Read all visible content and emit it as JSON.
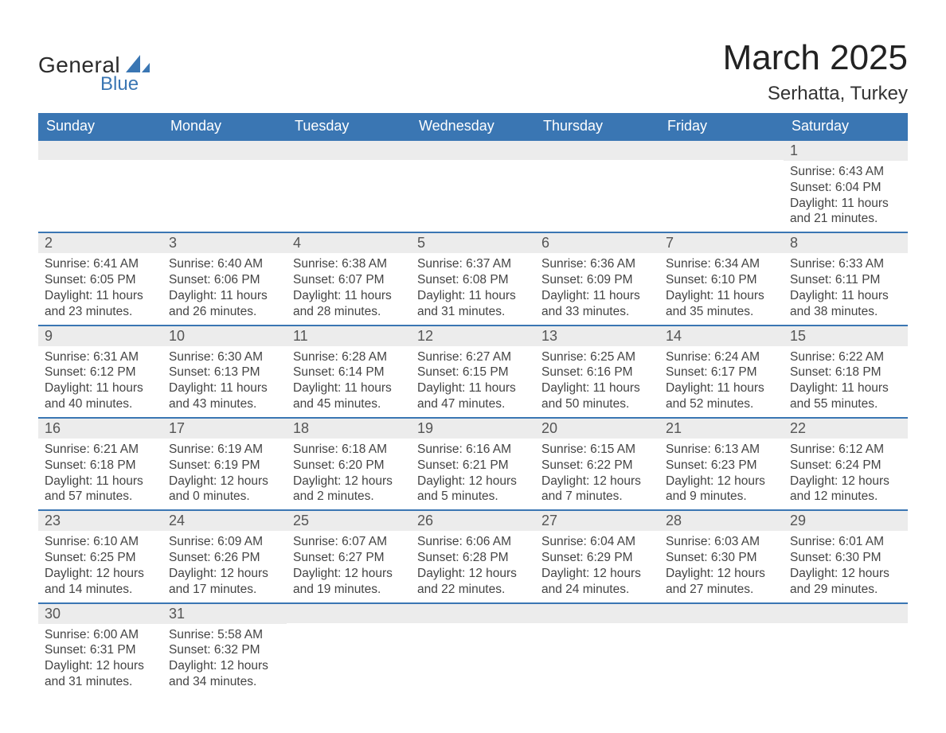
{
  "brand": {
    "top": "General",
    "bottom": "Blue"
  },
  "title": "March 2025",
  "location": "Serhatta, Turkey",
  "colors": {
    "header_bg": "#3a76b3",
    "header_text": "#ffffff",
    "daynum_bg": "#ececec",
    "row_border": "#3a76b3",
    "body_text": "#444444",
    "page_bg": "#ffffff",
    "brand_blue": "#3a76b3"
  },
  "fonts": {
    "title_pt": 44,
    "location_pt": 24,
    "header_pt": 18,
    "body_pt": 15.5
  },
  "day_headers": [
    "Sunday",
    "Monday",
    "Tuesday",
    "Wednesday",
    "Thursday",
    "Friday",
    "Saturday"
  ],
  "calendar": {
    "type": "table",
    "columns": 7,
    "weeks": [
      [
        null,
        null,
        null,
        null,
        null,
        null,
        {
          "n": "1",
          "sunrise": "6:43 AM",
          "sunset": "6:04 PM",
          "daylight": "11 hours and 21 minutes."
        }
      ],
      [
        {
          "n": "2",
          "sunrise": "6:41 AM",
          "sunset": "6:05 PM",
          "daylight": "11 hours and 23 minutes."
        },
        {
          "n": "3",
          "sunrise": "6:40 AM",
          "sunset": "6:06 PM",
          "daylight": "11 hours and 26 minutes."
        },
        {
          "n": "4",
          "sunrise": "6:38 AM",
          "sunset": "6:07 PM",
          "daylight": "11 hours and 28 minutes."
        },
        {
          "n": "5",
          "sunrise": "6:37 AM",
          "sunset": "6:08 PM",
          "daylight": "11 hours and 31 minutes."
        },
        {
          "n": "6",
          "sunrise": "6:36 AM",
          "sunset": "6:09 PM",
          "daylight": "11 hours and 33 minutes."
        },
        {
          "n": "7",
          "sunrise": "6:34 AM",
          "sunset": "6:10 PM",
          "daylight": "11 hours and 35 minutes."
        },
        {
          "n": "8",
          "sunrise": "6:33 AM",
          "sunset": "6:11 PM",
          "daylight": "11 hours and 38 minutes."
        }
      ],
      [
        {
          "n": "9",
          "sunrise": "6:31 AM",
          "sunset": "6:12 PM",
          "daylight": "11 hours and 40 minutes."
        },
        {
          "n": "10",
          "sunrise": "6:30 AM",
          "sunset": "6:13 PM",
          "daylight": "11 hours and 43 minutes."
        },
        {
          "n": "11",
          "sunrise": "6:28 AM",
          "sunset": "6:14 PM",
          "daylight": "11 hours and 45 minutes."
        },
        {
          "n": "12",
          "sunrise": "6:27 AM",
          "sunset": "6:15 PM",
          "daylight": "11 hours and 47 minutes."
        },
        {
          "n": "13",
          "sunrise": "6:25 AM",
          "sunset": "6:16 PM",
          "daylight": "11 hours and 50 minutes."
        },
        {
          "n": "14",
          "sunrise": "6:24 AM",
          "sunset": "6:17 PM",
          "daylight": "11 hours and 52 minutes."
        },
        {
          "n": "15",
          "sunrise": "6:22 AM",
          "sunset": "6:18 PM",
          "daylight": "11 hours and 55 minutes."
        }
      ],
      [
        {
          "n": "16",
          "sunrise": "6:21 AM",
          "sunset": "6:18 PM",
          "daylight": "11 hours and 57 minutes."
        },
        {
          "n": "17",
          "sunrise": "6:19 AM",
          "sunset": "6:19 PM",
          "daylight": "12 hours and 0 minutes."
        },
        {
          "n": "18",
          "sunrise": "6:18 AM",
          "sunset": "6:20 PM",
          "daylight": "12 hours and 2 minutes."
        },
        {
          "n": "19",
          "sunrise": "6:16 AM",
          "sunset": "6:21 PM",
          "daylight": "12 hours and 5 minutes."
        },
        {
          "n": "20",
          "sunrise": "6:15 AM",
          "sunset": "6:22 PM",
          "daylight": "12 hours and 7 minutes."
        },
        {
          "n": "21",
          "sunrise": "6:13 AM",
          "sunset": "6:23 PM",
          "daylight": "12 hours and 9 minutes."
        },
        {
          "n": "22",
          "sunrise": "6:12 AM",
          "sunset": "6:24 PM",
          "daylight": "12 hours and 12 minutes."
        }
      ],
      [
        {
          "n": "23",
          "sunrise": "6:10 AM",
          "sunset": "6:25 PM",
          "daylight": "12 hours and 14 minutes."
        },
        {
          "n": "24",
          "sunrise": "6:09 AM",
          "sunset": "6:26 PM",
          "daylight": "12 hours and 17 minutes."
        },
        {
          "n": "25",
          "sunrise": "6:07 AM",
          "sunset": "6:27 PM",
          "daylight": "12 hours and 19 minutes."
        },
        {
          "n": "26",
          "sunrise": "6:06 AM",
          "sunset": "6:28 PM",
          "daylight": "12 hours and 22 minutes."
        },
        {
          "n": "27",
          "sunrise": "6:04 AM",
          "sunset": "6:29 PM",
          "daylight": "12 hours and 24 minutes."
        },
        {
          "n": "28",
          "sunrise": "6:03 AM",
          "sunset": "6:30 PM",
          "daylight": "12 hours and 27 minutes."
        },
        {
          "n": "29",
          "sunrise": "6:01 AM",
          "sunset": "6:30 PM",
          "daylight": "12 hours and 29 minutes."
        }
      ],
      [
        {
          "n": "30",
          "sunrise": "6:00 AM",
          "sunset": "6:31 PM",
          "daylight": "12 hours and 31 minutes."
        },
        {
          "n": "31",
          "sunrise": "5:58 AM",
          "sunset": "6:32 PM",
          "daylight": "12 hours and 34 minutes."
        },
        null,
        null,
        null,
        null,
        null
      ]
    ]
  },
  "labels": {
    "sunrise": "Sunrise: ",
    "sunset": "Sunset: ",
    "daylight": "Daylight: "
  }
}
